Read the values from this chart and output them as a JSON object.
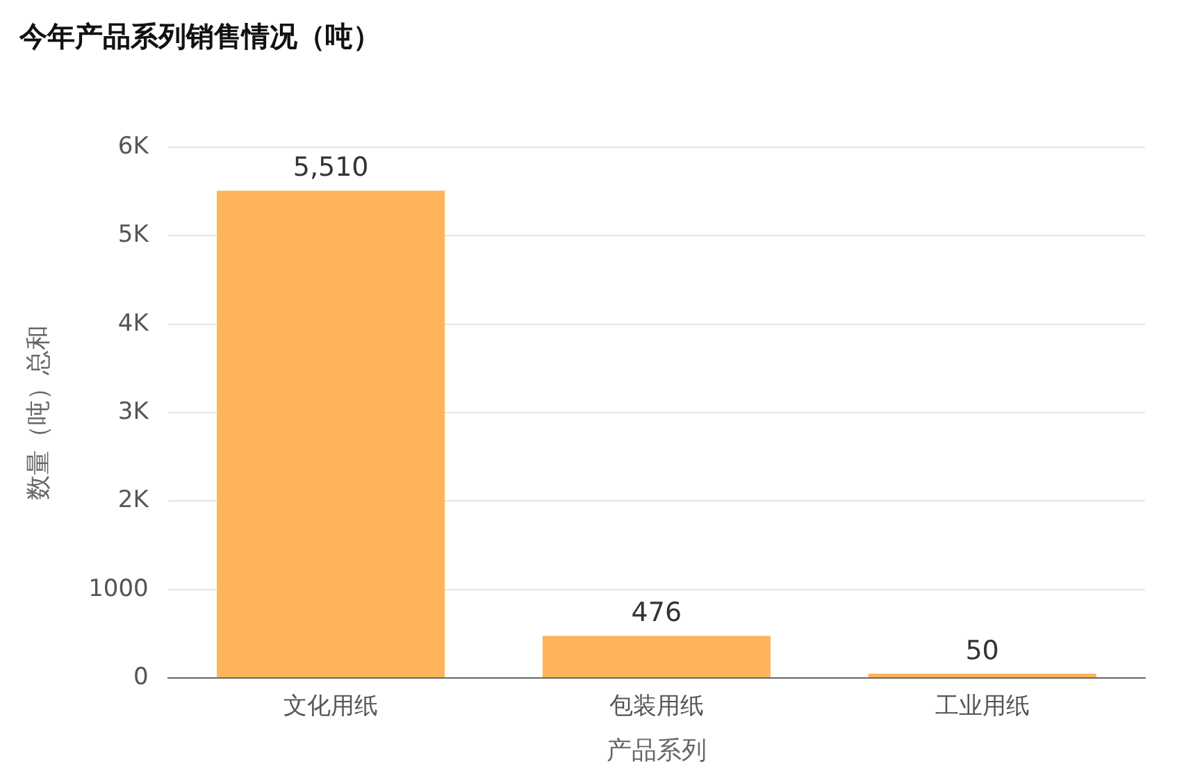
{
  "chart_data": {
    "type": "bar",
    "title": "今年产品系列销售情况（吨）",
    "xlabel": "产品系列",
    "ylabel": "数量（吨）总和",
    "categories": [
      "文化用纸",
      "包装用纸",
      "工业用纸"
    ],
    "values": [
      5510,
      476,
      50
    ],
    "value_labels": [
      "5,510",
      "476",
      "50"
    ],
    "color": "#feb45a",
    "ylim": [
      0,
      6000
    ],
    "yticks": [
      0,
      1000,
      {
        "value": 2000,
        "label": "2K"
      },
      {
        "value": 3000,
        "label": "3K"
      },
      {
        "value": 4000,
        "label": "4K"
      },
      {
        "value": 5000,
        "label": "5K"
      },
      {
        "value": 6000,
        "label": "6K"
      }
    ],
    "grid": "y",
    "legend": false
  }
}
